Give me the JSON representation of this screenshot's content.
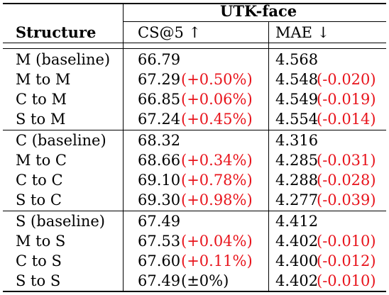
{
  "table": {
    "group_header": "UTK-face",
    "columns": [
      "Structure",
      "CS@5 ↑",
      "MAE ↓"
    ],
    "groups": [
      {
        "rows": [
          {
            "structure": "M (baseline)",
            "cs5": "66.79",
            "cs5_delta": "",
            "mae": "4.568",
            "mae_delta": ""
          },
          {
            "structure": "M to M",
            "cs5": "67.29",
            "cs5_delta": "(+0.50%)",
            "mae": "4.548",
            "mae_delta": "(-0.020)"
          },
          {
            "structure": "C to M",
            "cs5": "66.85",
            "cs5_delta": "(+0.06%)",
            "mae": "4.549",
            "mae_delta": "(-0.019)"
          },
          {
            "structure": "S to M",
            "cs5": "67.24",
            "cs5_delta": "(+0.45%)",
            "mae": "4.554",
            "mae_delta": "(-0.014)"
          }
        ]
      },
      {
        "rows": [
          {
            "structure": "C (baseline)",
            "cs5": "68.32",
            "cs5_delta": "",
            "mae": "4.316",
            "mae_delta": ""
          },
          {
            "structure": "M to C",
            "cs5": "68.66",
            "cs5_delta": "(+0.34%)",
            "mae": "4.285",
            "mae_delta": "(-0.031)"
          },
          {
            "structure": "C to C",
            "cs5": "69.10",
            "cs5_delta": "(+0.78%)",
            "mae": "4.288",
            "mae_delta": "(-0.028)"
          },
          {
            "structure": "S to C",
            "cs5": "69.30",
            "cs5_delta": "(+0.98%)",
            "mae": "4.277",
            "mae_delta": "(-0.039)"
          }
        ]
      },
      {
        "rows": [
          {
            "structure": "S (baseline)",
            "cs5": "67.49",
            "cs5_delta": "",
            "mae": "4.412",
            "mae_delta": ""
          },
          {
            "structure": "M to S",
            "cs5": "67.53",
            "cs5_delta": "(+0.04%)",
            "mae": "4.402",
            "mae_delta": "(-0.010)"
          },
          {
            "structure": "C to S",
            "cs5": "67.60",
            "cs5_delta": "(+0.11%)",
            "mae": "4.400",
            "mae_delta": "(-0.012)"
          },
          {
            "structure": "S to S",
            "cs5": "67.49",
            "cs5_delta": "(±0%)",
            "mae": "4.402",
            "mae_delta": "(-0.010)"
          }
        ]
      }
    ],
    "colors": {
      "delta_text": "#e8141c",
      "text": "#000000",
      "rule": "#000000"
    }
  }
}
